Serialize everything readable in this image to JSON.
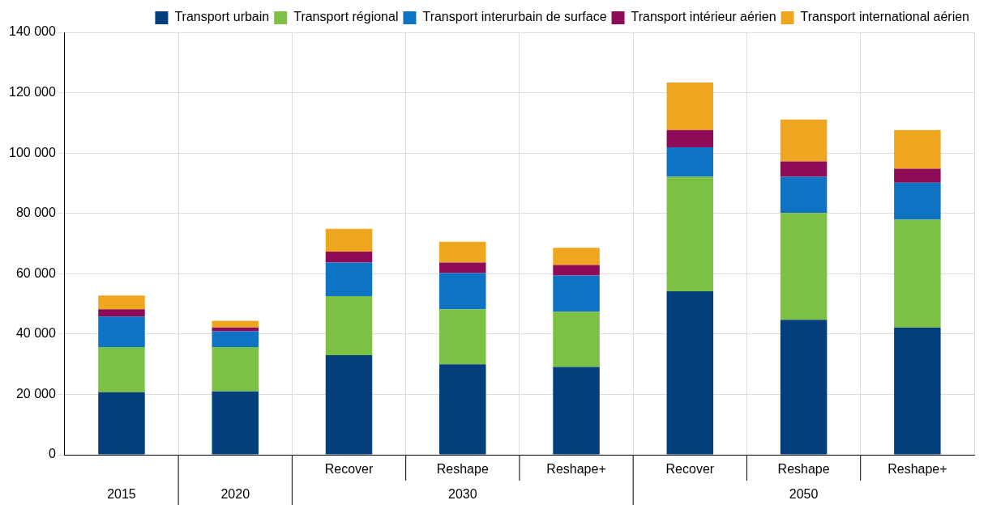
{
  "chart_data": {
    "type": "bar",
    "stacked": true,
    "categories": [
      null,
      null,
      "Recover",
      "Reshape",
      "Reshape+",
      "Recover",
      "Reshape",
      "Reshape+"
    ],
    "series": [
      {
        "name": "Transport urbain",
        "color": "#043e7c",
        "values": [
          20700,
          21000,
          33000,
          30000,
          29100,
          54200,
          44700,
          42200
        ]
      },
      {
        "name": "Transport régional",
        "color": "#7cc144",
        "values": [
          15000,
          14700,
          19600,
          18200,
          18300,
          37900,
          35400,
          35700
        ]
      },
      {
        "name": "Transport interurbain de surface",
        "color": "#0f73c4",
        "values": [
          10100,
          5200,
          11100,
          12000,
          12000,
          9800,
          12000,
          12300
        ]
      },
      {
        "name": "Transport intérieur aérien",
        "color": "#8e0b57",
        "values": [
          2400,
          1300,
          3600,
          3500,
          3500,
          5700,
          5100,
          4600
        ]
      },
      {
        "name": "Transport international aérien",
        "color": "#eea520",
        "values": [
          4600,
          2200,
          7600,
          6900,
          5700,
          15800,
          13900,
          12800
        ]
      }
    ],
    "ylim": [
      0,
      140000
    ],
    "yticks": [
      {
        "value": 0,
        "label": "0"
      },
      {
        "value": 20000,
        "label": "20 000"
      },
      {
        "value": 40000,
        "label": "40 000"
      },
      {
        "value": 60000,
        "label": "60 000"
      },
      {
        "value": 80000,
        "label": "80 000"
      },
      {
        "value": 100000,
        "label": "100 000"
      },
      {
        "value": 120000,
        "label": "120 000"
      },
      {
        "value": 140000,
        "label": "140 000"
      }
    ],
    "annotations": [
      "2015",
      "2020",
      "2030",
      "2050"
    ],
    "grid": true,
    "legend": "top"
  }
}
